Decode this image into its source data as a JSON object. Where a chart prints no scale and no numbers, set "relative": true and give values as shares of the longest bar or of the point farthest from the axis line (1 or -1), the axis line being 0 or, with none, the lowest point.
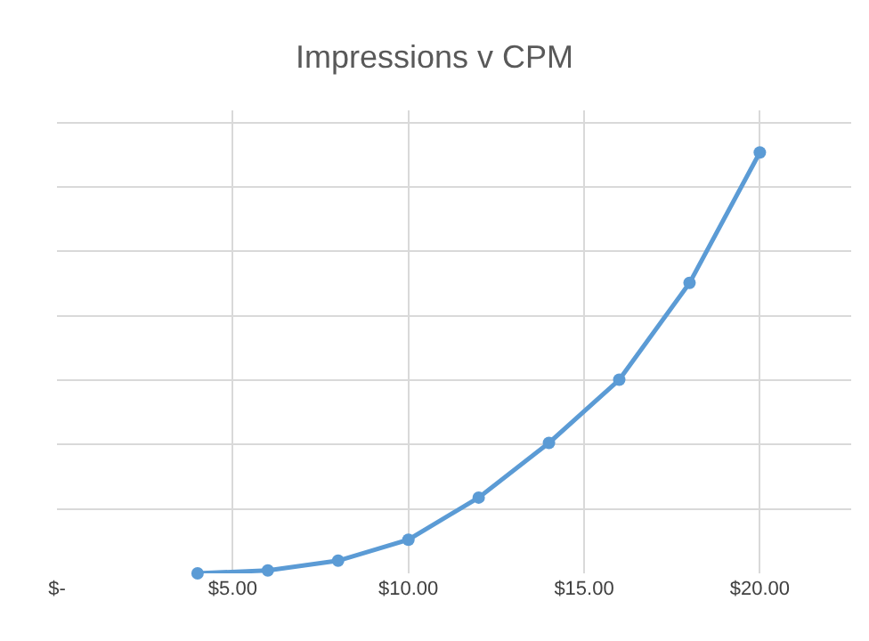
{
  "chart_data": {
    "type": "line",
    "title": "Impressions v CPM",
    "relative": true,
    "x": [
      4,
      6,
      8,
      10,
      12,
      14,
      16,
      18,
      20
    ],
    "series": [
      {
        "color": "#5b9bd5",
        "values": [
          0,
          0.007,
          0.03,
          0.08,
          0.18,
          0.31,
          0.46,
          0.69,
          1
        ]
      }
    ],
    "xlim": [
      0,
      22.6
    ],
    "xticks": [
      {
        "value": 0,
        "label": "$-"
      },
      {
        "value": 5,
        "label": "$5.00"
      },
      {
        "value": 10,
        "label": "$10.00"
      },
      {
        "value": 15,
        "label": "$15.00"
      },
      {
        "value": 20,
        "label": "$20.00"
      }
    ],
    "grid": true,
    "legend": false,
    "marker": "circle",
    "line_style": "solid"
  }
}
